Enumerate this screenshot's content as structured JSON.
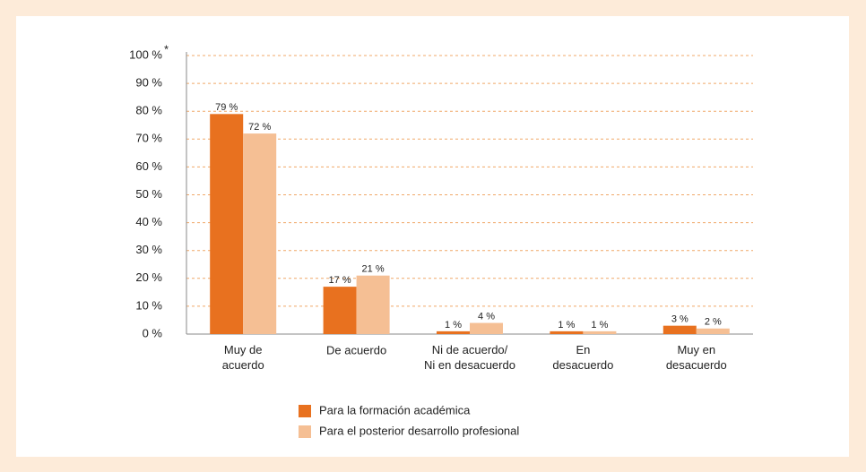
{
  "chart_data": {
    "type": "bar",
    "categories": [
      "Muy de\nacuerdo",
      "De acuerdo",
      "Ni de acuerdo/\nNi en desacuerdo",
      "En\ndesacuerdo",
      "Muy en\ndesacuerdo"
    ],
    "series": [
      {
        "name": "Para la formación académica",
        "color": "#e8711f",
        "values": [
          79,
          17,
          1,
          1,
          3
        ],
        "value_labels": [
          "79 %",
          "17 %",
          "1 %",
          "1 %",
          "3 %"
        ]
      },
      {
        "name": "Para el posterior desarrollo profesional",
        "color": "#f5bf94",
        "values": [
          72,
          21,
          4,
          1,
          2
        ],
        "value_labels": [
          "72 %",
          "21 %",
          "4 %",
          "1 %",
          "2 %"
        ]
      }
    ],
    "ylim": [
      0,
      100
    ],
    "yticks": [
      {
        "value": 0,
        "label": "0 %"
      },
      {
        "value": 10,
        "label": "10 %"
      },
      {
        "value": 20,
        "label": "20 %"
      },
      {
        "value": 30,
        "label": "30 %"
      },
      {
        "value": 40,
        "label": "40 %"
      },
      {
        "value": 50,
        "label": "50 %"
      },
      {
        "value": 60,
        "label": "60 %"
      },
      {
        "value": 70,
        "label": "70 %"
      },
      {
        "value": 80,
        "label": "80 %"
      },
      {
        "value": 90,
        "label": "90 %"
      },
      {
        "value": 100,
        "label": "100 %"
      }
    ],
    "axis_note": "*",
    "grid": true
  }
}
